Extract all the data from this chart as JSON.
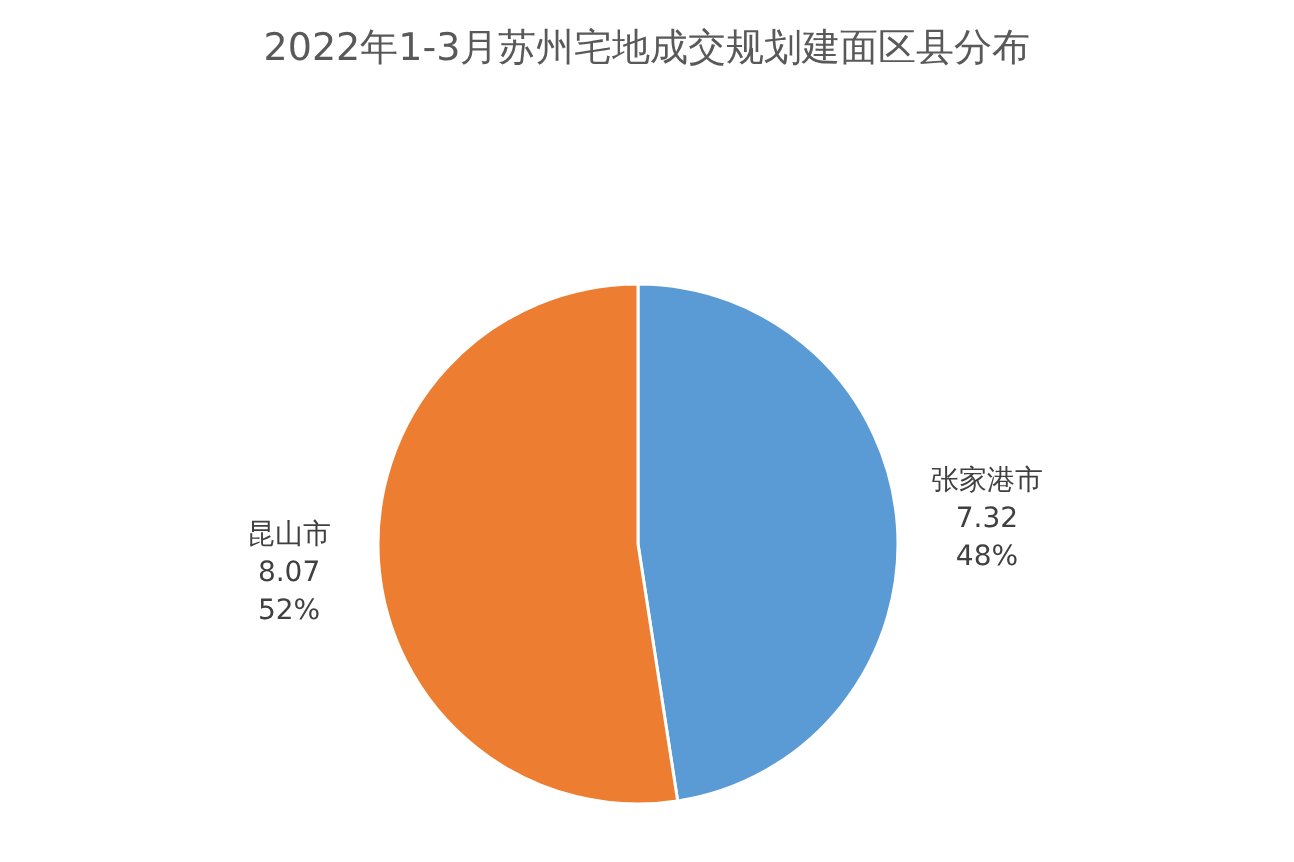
{
  "chart_data": {
    "type": "pie",
    "title": "2022年1-3月苏州宅地成交规划建面区县分布",
    "categories": [
      "张家港市",
      "昆山市"
    ],
    "values": [
      7.32,
      8.07
    ],
    "colors": [
      "#5b9bd5",
      "#ed7d31"
    ],
    "value_labels": [
      "7.32\n48%",
      "8.07\n52%"
    ]
  }
}
